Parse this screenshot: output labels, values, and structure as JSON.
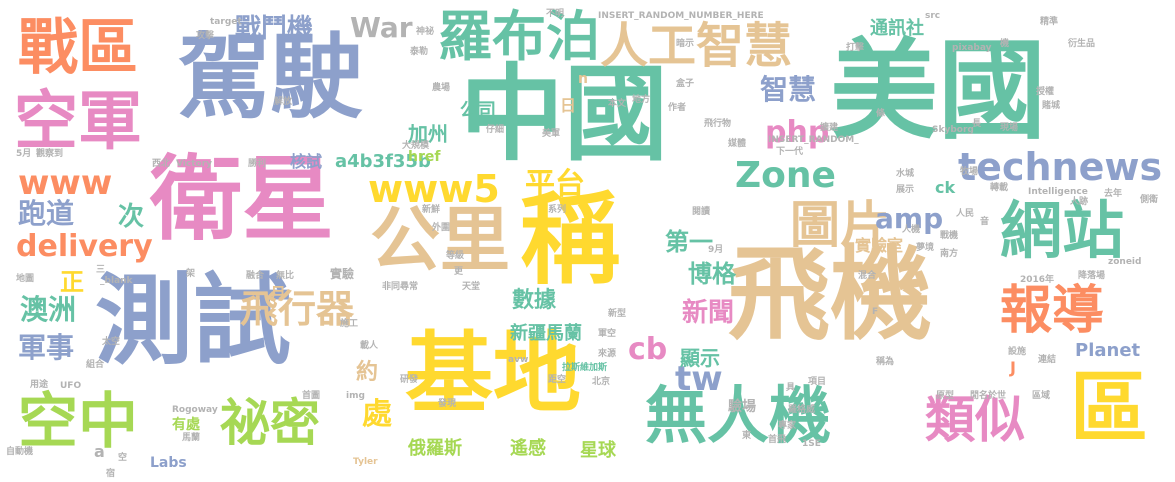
{
  "colors": {
    "teal": "#66c2a5",
    "orange": "#fc8d62",
    "blue": "#8da0cb",
    "pink": "#e78ac3",
    "green": "#a6d854",
    "yellow": "#ffd92f",
    "tan": "#e5c494",
    "gray": "#b3b3b3"
  },
  "words": {
    "w001": "美國",
    "w002": "中國",
    "w003": "駕駛",
    "w004": "衛星",
    "w005": "測試",
    "w006": "飛機",
    "w007": "稱",
    "w008": "基地",
    "w009": "公里",
    "w010": "區",
    "w011": "戰區",
    "w012": "空軍",
    "w013": "羅布泊",
    "w014": "人工智慧",
    "w015": "網站",
    "w016": "無人機",
    "w017": "空中",
    "w018": "祕密",
    "w019": "類似",
    "w020": "報導",
    "w021": "圖片",
    "w022": "www5",
    "w023": "technews",
    "w024": "War",
    "w025": "戰鬥機",
    "w026": "www",
    "w027": "飛行器",
    "w028": "delivery",
    "w029": "跑道",
    "w030": "澳洲",
    "w031": "軍事",
    "w032": "平台",
    "w033": "Zone",
    "w034": "php",
    "w035": "amp",
    "w036": "智慧",
    "w037": "通訊社",
    "w038": "公司",
    "w039": "加州",
    "w040": "a4b3f35b",
    "w041": "核試",
    "w042": "tw",
    "w043": "cb",
    "w044": "新聞",
    "w045": "博格",
    "w046": "第一",
    "w047": "實驗室",
    "w048": "數據",
    "w049": "新疆馬蘭",
    "w050": "顯示",
    "w051": "Planet",
    "w052": "處",
    "w053": "次",
    "w054": "正",
    "w055": "約",
    "w056": "Labs",
    "w057": "有處",
    "w058": "俄羅斯",
    "w059": "遙感",
    "w060": "星球",
    "w061": "月",
    "w062": "日",
    "w063": "n",
    "w064": "J",
    "w065": "ck",
    "w066": "href",
    "w067": "驗場",
    "w068": "實驗",
    "w069": "天堂",
    "w070": "來源",
    "w071": "拉斯維加斯",
    "w072": "北京",
    "w073": "研發",
    "w074": "發現",
    "w075": "距空",
    "w076": "Rogoway",
    "w077": "img",
    "w078": "首圖",
    "w079": "Tyler",
    "w080": "馬蘭",
    "w081": "自動機",
    "w082": "a",
    "w083": "空",
    "w084": "UFO",
    "w085": "用途",
    "w086": "組合",
    "w087": "太空",
    "w088": "地圖",
    "w089": "_blank",
    "w090": "三",
    "w091": "架",
    "w092": "無比",
    "w093": "融合",
    "w094": "非同尋常",
    "w095": "施工",
    "w096": "載人",
    "w097": "新型",
    "w098": "軍空",
    "w099": "avw",
    "w100": "Skyborg",
    "w101": "Intelligence",
    "w102": "INSERT_RANDOM_",
    "w103": "INSERT_RANDOM_NUMBER_HERE",
    "w104": "target",
    "w105": "攻擊",
    "w106": "不明",
    "w107": "神祕",
    "w108": "泰勒",
    "w109": "src",
    "w110": "pixabay",
    "w111": "精準",
    "w112": "衍生品",
    "w113": "打擊",
    "w114": "暗示",
    "w115": "盒子",
    "w116": "本文",
    "w117": "地方",
    "w118": "作者",
    "w119": "飛行物",
    "w120": "擴建",
    "w121": "現場",
    "w122": "下一代",
    "w123": "媒體",
    "w124": "賭城",
    "w125": "授權",
    "w126": "長",
    "w127": "西北",
    "w128": "Victory",
    "w129": "觀察到",
    "w130": "5月",
    "w131": "解放",
    "w132": "農場",
    "w133": "仔細",
    "w134": "美軍",
    "w135": "大規模",
    "w136": "勝利",
    "w137": "水城",
    "w138": "展示",
    "w139": "牧場",
    "w140": "轉載",
    "w141": "側衛",
    "w142": "去年",
    "w143": "人民",
    "w144": "人跡",
    "w145": "人機",
    "w146": "夢境",
    "w147": "戰機",
    "w148": "南方",
    "w149": "2016年",
    "w150": "降落場",
    "w151": "zoneid",
    "w152": "混合",
    "w153": "原型",
    "w154": "閒名於世",
    "w155": "稱為",
    "w156": "連結",
    "w157": "設施",
    "w158": "區域",
    "w159": "專家",
    "w160": "1SE",
    "w161": "首飛",
    "w162": "羅格威",
    "w163": "項目",
    "w164": "東",
    "w165": "具",
    "w166": "系列",
    "w167": "9月",
    "w168": "閱讀",
    "w169": "外圍",
    "w170": "新鮮",
    "w171": "等級",
    "w172": "更",
    "w173": "音",
    "w174": "F",
    "w175": "條",
    "w176": "機",
    "w177": "宿"
  }
}
